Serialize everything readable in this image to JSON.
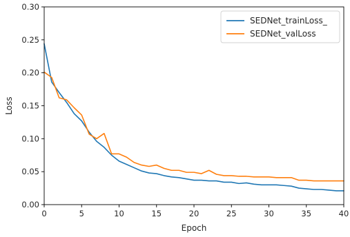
{
  "chart_data": {
    "type": "line",
    "title": "",
    "xlabel": "Epoch",
    "ylabel": "Loss",
    "xlim": [
      0,
      40
    ],
    "ylim": [
      0,
      0.3
    ],
    "xticks": [
      0,
      5,
      10,
      15,
      20,
      25,
      30,
      35,
      40
    ],
    "yticks": [
      0.0,
      0.05,
      0.1,
      0.15,
      0.2,
      0.25,
      0.3
    ],
    "xtick_labels": [
      "0",
      "5",
      "10",
      "15",
      "20",
      "25",
      "30",
      "35",
      "40"
    ],
    "ytick_labels": [
      "0.00",
      "0.05",
      "0.10",
      "0.15",
      "0.20",
      "0.25",
      "0.30"
    ],
    "grid": false,
    "legend_position": "top-right",
    "x": [
      0,
      1,
      2,
      3,
      4,
      5,
      6,
      7,
      8,
      9,
      10,
      11,
      12,
      13,
      14,
      15,
      16,
      17,
      18,
      19,
      20,
      21,
      22,
      23,
      24,
      25,
      26,
      27,
      28,
      29,
      30,
      31,
      32,
      33,
      34,
      35,
      36,
      37,
      38,
      39,
      40
    ],
    "series": [
      {
        "name": "SEDNet_trainLoss_",
        "color": "#1f77b4",
        "values": [
          0.244,
          0.186,
          0.17,
          0.155,
          0.138,
          0.127,
          0.11,
          0.096,
          0.087,
          0.075,
          0.066,
          0.061,
          0.056,
          0.051,
          0.048,
          0.047,
          0.044,
          0.042,
          0.041,
          0.039,
          0.037,
          0.037,
          0.036,
          0.036,
          0.034,
          0.034,
          0.032,
          0.033,
          0.031,
          0.03,
          0.03,
          0.03,
          0.029,
          0.028,
          0.025,
          0.024,
          0.023,
          0.023,
          0.022,
          0.021,
          0.021
        ]
      },
      {
        "name": "SEDNet_valLoss",
        "color": "#ff7f0e",
        "values": [
          0.201,
          0.193,
          0.162,
          0.159,
          0.147,
          0.136,
          0.107,
          0.1,
          0.108,
          0.077,
          0.077,
          0.072,
          0.064,
          0.06,
          0.058,
          0.06,
          0.055,
          0.052,
          0.052,
          0.049,
          0.049,
          0.047,
          0.052,
          0.046,
          0.044,
          0.044,
          0.043,
          0.043,
          0.042,
          0.042,
          0.042,
          0.041,
          0.041,
          0.041,
          0.037,
          0.037,
          0.036,
          0.036,
          0.036,
          0.036,
          0.036
        ]
      }
    ]
  }
}
